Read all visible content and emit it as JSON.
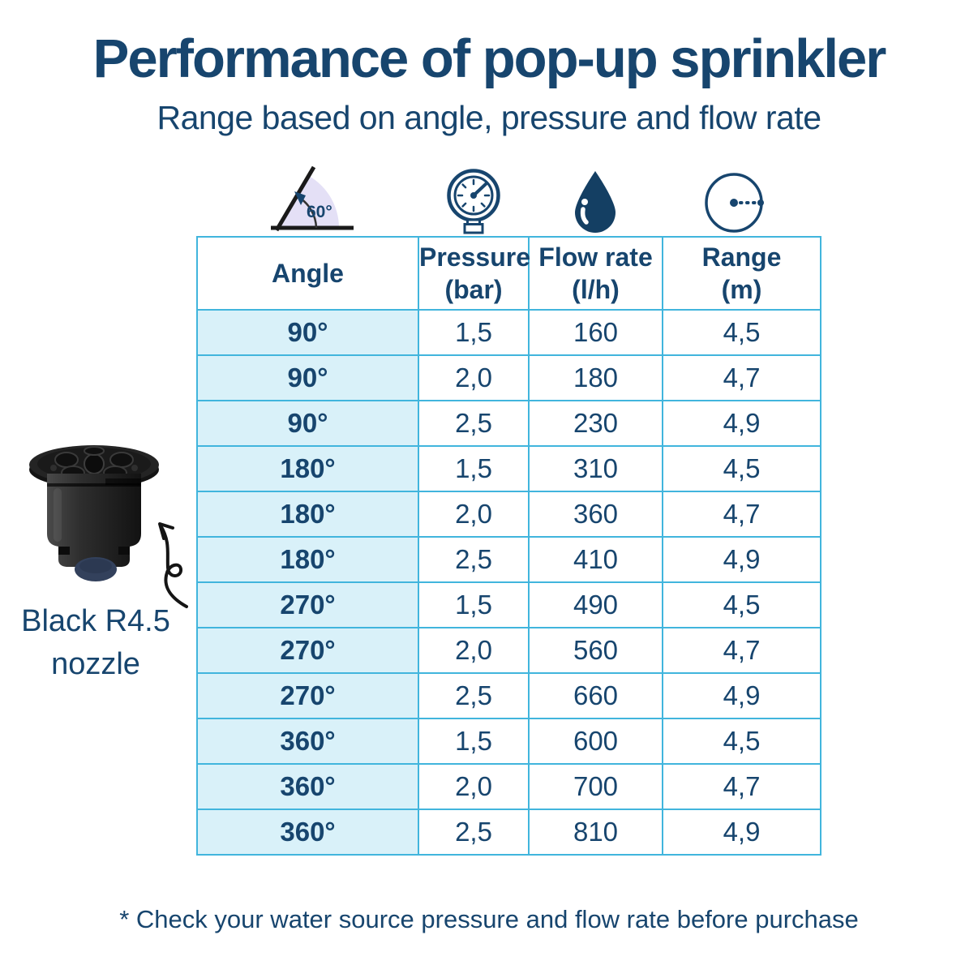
{
  "chart_data": {
    "type": "table",
    "title": "Performance of pop-up sprinkler",
    "subtitle": "Range based on angle, pressure and flow rate",
    "columns": [
      {
        "label": "Angle",
        "unit": ""
      },
      {
        "label": "Pressure",
        "unit": "(bar)"
      },
      {
        "label": "Flow rate",
        "unit": "(l/h)"
      },
      {
        "label": "Range",
        "unit": "(m)"
      }
    ],
    "rows": [
      [
        "90°",
        "1,5",
        "160",
        "4,5"
      ],
      [
        "90°",
        "2,0",
        "180",
        "4,7"
      ],
      [
        "90°",
        "2,5",
        "230",
        "4,9"
      ],
      [
        "180°",
        "1,5",
        "310",
        "4,5"
      ],
      [
        "180°",
        "2,0",
        "360",
        "4,7"
      ],
      [
        "180°",
        "2,5",
        "410",
        "4,9"
      ],
      [
        "270°",
        "1,5",
        "490",
        "4,5"
      ],
      [
        "270°",
        "2,0",
        "560",
        "4,7"
      ],
      [
        "270°",
        "2,5",
        "660",
        "4,9"
      ],
      [
        "360°",
        "1,5",
        "600",
        "4,5"
      ],
      [
        "360°",
        "2,0",
        "700",
        "4,7"
      ],
      [
        "360°",
        "2,5",
        "810",
        "4,9"
      ]
    ],
    "footnote": "* Check your water source pressure and flow rate before purchase",
    "layout": {
      "grid": "on",
      "header_position": "top",
      "angle_column_highlighted": true
    }
  },
  "icons": {
    "angle_value": "60°",
    "names": [
      "angle-60-icon",
      "pressure-gauge-icon",
      "water-drop-icon",
      "range-radius-icon"
    ]
  },
  "product": {
    "label_line1": "Black R4.5",
    "label_line2": "nozzle"
  },
  "colors": {
    "navy_text": "#17456e",
    "table_border": "#41b5dd",
    "angle_column_bg": "#d9f1f9",
    "angle_sector_fill": "#e4e0f6",
    "icon_fill": "#143f63"
  }
}
